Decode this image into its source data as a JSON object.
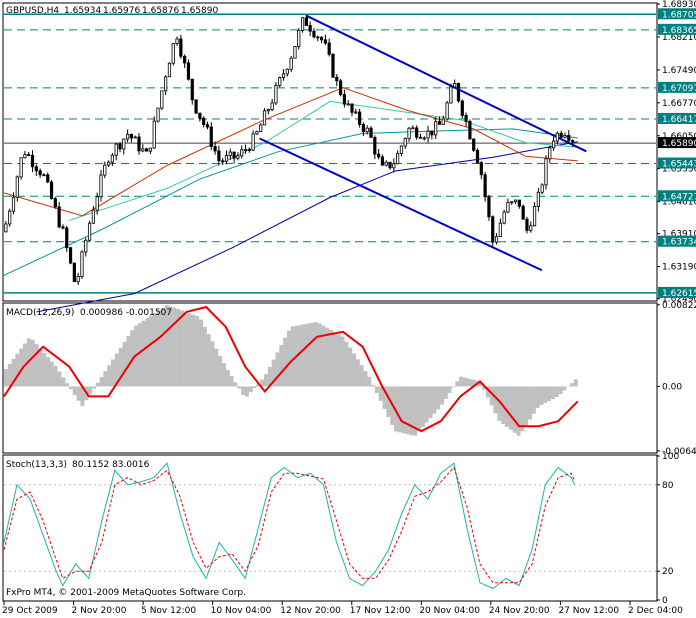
{
  "symbol_label": "GBPUSD,H4",
  "ohlc": {
    "open": "1.65934",
    "high": "1.65976",
    "low": "1.65876",
    "close": "1.65890"
  },
  "macd_label": "MACD(12,26,9)",
  "macd_values": "0.000986 -0.001507",
  "stoch_label": "Stoch(13,3,3)",
  "stoch_values": "80.1152 83.0016",
  "copyright": "FxPro MT4, © 2001-2009 MetaQuotes Software Corp.",
  "colors": {
    "frame": "#000000",
    "candle": "#000000",
    "h_lines": "#008080",
    "channel": "#0000cc",
    "ma_slow": "#000099",
    "ma_mid": "#009999",
    "ma_light": "#33cc99",
    "ma_red": "#cc3300",
    "macd_hist": "#c0c0c0",
    "macd_signal": "#ee0000",
    "stoch_main": "#20b2aa",
    "stoch_signal": "#ee0000",
    "label_bg": "#008080"
  },
  "chart_data": [
    {
      "type": "candlestick",
      "title": "GBPUSD,H4",
      "y_ticks": [
        "1.68930",
        "1.68210",
        "1.67490",
        "1.66770",
        "1.66050",
        "1.65330",
        "1.64610",
        "1.63910",
        "1.63190",
        "1.62490"
      ],
      "ylim": [
        1.6246,
        1.6893
      ],
      "x_ticks": [
        "29 Oct 2009",
        "2 Nov 20:00",
        "5 Nov 12:00",
        "10 Nov 04:00",
        "12 Nov 20:00",
        "17 Nov 12:00",
        "20 Nov 04:00",
        "24 Nov 20:00",
        "27 Nov 12:00",
        "2 Dec 04:00"
      ],
      "horizontal_levels": [
        "1.68705",
        "1.68365",
        "1.67097",
        "1.66417",
        "1.65890",
        "1.65443",
        "1.64727",
        "1.63734",
        "1.62615"
      ],
      "current_price": "1.65890",
      "channel_upper": [
        {
          "x": 0.463,
          "y": 1.6868
        },
        {
          "x": 0.893,
          "y": 1.6571
        }
      ],
      "channel_lower": [
        {
          "x": 0.392,
          "y": 1.6599
        },
        {
          "x": 0.825,
          "y": 1.6311
        }
      ],
      "close_path": [
        [
          0.0,
          1.6395
        ],
        [
          0.03,
          1.6575
        ],
        [
          0.06,
          1.652
        ],
        [
          0.09,
          1.6395
        ],
        [
          0.11,
          1.6275
        ],
        [
          0.135,
          1.644
        ],
        [
          0.16,
          1.656
        ],
        [
          0.19,
          1.661
        ],
        [
          0.22,
          1.656
        ],
        [
          0.25,
          1.6755
        ],
        [
          0.265,
          1.683
        ],
        [
          0.29,
          1.668
        ],
        [
          0.31,
          1.662
        ],
        [
          0.33,
          1.655
        ],
        [
          0.36,
          1.656
        ],
        [
          0.385,
          1.66
        ],
        [
          0.41,
          1.668
        ],
        [
          0.44,
          1.678
        ],
        [
          0.46,
          1.686
        ],
        [
          0.49,
          1.681
        ],
        [
          0.51,
          1.672
        ],
        [
          0.53,
          1.666
        ],
        [
          0.56,
          1.661
        ],
        [
          0.58,
          1.653
        ],
        [
          0.6,
          1.655
        ],
        [
          0.62,
          1.662
        ],
        [
          0.65,
          1.661
        ],
        [
          0.67,
          1.663
        ],
        [
          0.69,
          1.672
        ],
        [
          0.71,
          1.663
        ],
        [
          0.73,
          1.654
        ],
        [
          0.75,
          1.637
        ],
        [
          0.77,
          1.645
        ],
        [
          0.79,
          1.646
        ],
        [
          0.8,
          1.639
        ],
        [
          0.82,
          1.647
        ],
        [
          0.84,
          1.66
        ],
        [
          0.86,
          1.6618
        ],
        [
          0.875,
          1.6595
        ]
      ],
      "moving_averages": [
        {
          "role": "slow",
          "points": [
            [
              0.05,
              1.622
            ],
            [
              0.2,
              1.626
            ],
            [
              0.35,
              1.636
            ],
            [
              0.5,
              1.647
            ],
            [
              0.6,
              1.6528
            ],
            [
              0.75,
              1.6558
            ],
            [
              0.88,
              1.6592
            ]
          ]
        },
        {
          "role": "mid",
          "points": [
            [
              0.0,
              1.63
            ],
            [
              0.15,
              1.64
            ],
            [
              0.3,
              1.651
            ],
            [
              0.42,
              1.657
            ],
            [
              0.55,
              1.661
            ],
            [
              0.65,
              1.6615
            ],
            [
              0.78,
              1.662
            ],
            [
              0.88,
              1.66
            ]
          ]
        },
        {
          "role": "light",
          "points": [
            [
              0.1,
              1.642
            ],
            [
              0.25,
              1.649
            ],
            [
              0.4,
              1.659
            ],
            [
              0.5,
              1.668
            ],
            [
              0.6,
              1.666
            ],
            [
              0.7,
              1.664
            ],
            [
              0.8,
              1.659
            ],
            [
              0.88,
              1.658
            ]
          ]
        },
        {
          "role": "red",
          "points": [
            [
              0.0,
              1.648
            ],
            [
              0.12,
              1.643
            ],
            [
              0.25,
              1.654
            ],
            [
              0.4,
              1.664
            ],
            [
              0.52,
              1.671
            ],
            [
              0.62,
              1.666
            ],
            [
              0.72,
              1.662
            ],
            [
              0.8,
              1.656
            ],
            [
              0.88,
              1.655
            ]
          ]
        }
      ]
    },
    {
      "type": "bar",
      "title": "MACD(12,26,9)",
      "y_ticks": [
        "0.008220",
        "0.00",
        "-0.006495"
      ],
      "ylim": [
        -0.0066,
        0.0083
      ],
      "histogram_path": [
        [
          0.0,
          0.0015
        ],
        [
          0.04,
          0.005
        ],
        [
          0.08,
          0.002
        ],
        [
          0.12,
          -0.002
        ],
        [
          0.16,
          0.002
        ],
        [
          0.2,
          0.006
        ],
        [
          0.25,
          0.0082
        ],
        [
          0.3,
          0.007
        ],
        [
          0.34,
          0.002
        ],
        [
          0.37,
          -0.0012
        ],
        [
          0.4,
          0.001
        ],
        [
          0.44,
          0.006
        ],
        [
          0.48,
          0.0065
        ],
        [
          0.52,
          0.005
        ],
        [
          0.56,
          0.001
        ],
        [
          0.6,
          -0.0045
        ],
        [
          0.63,
          -0.005
        ],
        [
          0.67,
          -0.002
        ],
        [
          0.7,
          0.001
        ],
        [
          0.73,
          0.0005
        ],
        [
          0.76,
          -0.0035
        ],
        [
          0.79,
          -0.005
        ],
        [
          0.82,
          -0.002
        ],
        [
          0.85,
          -0.001
        ],
        [
          0.88,
          0.0009
        ]
      ],
      "signal_path": [
        [
          0.0,
          -0.001
        ],
        [
          0.03,
          0.002
        ],
        [
          0.06,
          0.004
        ],
        [
          0.1,
          0.002
        ],
        [
          0.13,
          -0.001
        ],
        [
          0.16,
          -0.001
        ],
        [
          0.2,
          0.003
        ],
        [
          0.24,
          0.005
        ],
        [
          0.28,
          0.0075
        ],
        [
          0.31,
          0.008
        ],
        [
          0.34,
          0.006
        ],
        [
          0.37,
          0.002
        ],
        [
          0.4,
          -0.0005
        ],
        [
          0.44,
          0.0025
        ],
        [
          0.48,
          0.005
        ],
        [
          0.52,
          0.0055
        ],
        [
          0.55,
          0.004
        ],
        [
          0.58,
          0.0
        ],
        [
          0.61,
          -0.0035
        ],
        [
          0.64,
          -0.0045
        ],
        [
          0.67,
          -0.0035
        ],
        [
          0.7,
          -0.001
        ],
        [
          0.73,
          0.0005
        ],
        [
          0.76,
          -0.0015
        ],
        [
          0.79,
          -0.004
        ],
        [
          0.82,
          -0.004
        ],
        [
          0.85,
          -0.0035
        ],
        [
          0.88,
          -0.0015
        ]
      ]
    },
    {
      "type": "line",
      "title": "Stoch(13,3,3)",
      "y_ticks": [
        "100",
        "80",
        "20",
        "0"
      ],
      "ylim": [
        0,
        100
      ],
      "main_path": [
        [
          0.0,
          40
        ],
        [
          0.02,
          80
        ],
        [
          0.04,
          70
        ],
        [
          0.06,
          45
        ],
        [
          0.08,
          20
        ],
        [
          0.09,
          10
        ],
        [
          0.11,
          25
        ],
        [
          0.13,
          15
        ],
        [
          0.15,
          55
        ],
        [
          0.17,
          90
        ],
        [
          0.19,
          80
        ],
        [
          0.21,
          82
        ],
        [
          0.23,
          85
        ],
        [
          0.25,
          95
        ],
        [
          0.27,
          60
        ],
        [
          0.29,
          30
        ],
        [
          0.31,
          15
        ],
        [
          0.33,
          40
        ],
        [
          0.35,
          28
        ],
        [
          0.37,
          15
        ],
        [
          0.39,
          50
        ],
        [
          0.41,
          85
        ],
        [
          0.43,
          92
        ],
        [
          0.45,
          85
        ],
        [
          0.47,
          88
        ],
        [
          0.49,
          80
        ],
        [
          0.51,
          40
        ],
        [
          0.53,
          15
        ],
        [
          0.55,
          10
        ],
        [
          0.57,
          20
        ],
        [
          0.59,
          35
        ],
        [
          0.61,
          60
        ],
        [
          0.63,
          80
        ],
        [
          0.65,
          70
        ],
        [
          0.67,
          88
        ],
        [
          0.69,
          95
        ],
        [
          0.71,
          50
        ],
        [
          0.73,
          12
        ],
        [
          0.75,
          8
        ],
        [
          0.77,
          15
        ],
        [
          0.79,
          10
        ],
        [
          0.81,
          35
        ],
        [
          0.83,
          80
        ],
        [
          0.85,
          92
        ],
        [
          0.87,
          85
        ],
        [
          0.875,
          80
        ]
      ],
      "signal_path": [
        [
          0.0,
          35
        ],
        [
          0.02,
          70
        ],
        [
          0.04,
          75
        ],
        [
          0.06,
          55
        ],
        [
          0.08,
          28
        ],
        [
          0.09,
          15
        ],
        [
          0.11,
          20
        ],
        [
          0.13,
          20
        ],
        [
          0.15,
          40
        ],
        [
          0.17,
          80
        ],
        [
          0.19,
          85
        ],
        [
          0.21,
          80
        ],
        [
          0.23,
          83
        ],
        [
          0.25,
          90
        ],
        [
          0.27,
          72
        ],
        [
          0.29,
          40
        ],
        [
          0.31,
          22
        ],
        [
          0.33,
          30
        ],
        [
          0.35,
          32
        ],
        [
          0.37,
          20
        ],
        [
          0.39,
          38
        ],
        [
          0.41,
          75
        ],
        [
          0.43,
          88
        ],
        [
          0.45,
          88
        ],
        [
          0.47,
          86
        ],
        [
          0.49,
          84
        ],
        [
          0.51,
          55
        ],
        [
          0.53,
          25
        ],
        [
          0.55,
          15
        ],
        [
          0.57,
          15
        ],
        [
          0.59,
          28
        ],
        [
          0.61,
          48
        ],
        [
          0.63,
          72
        ],
        [
          0.65,
          75
        ],
        [
          0.67,
          82
        ],
        [
          0.69,
          92
        ],
        [
          0.71,
          65
        ],
        [
          0.73,
          25
        ],
        [
          0.75,
          12
        ],
        [
          0.77,
          12
        ],
        [
          0.79,
          12
        ],
        [
          0.81,
          25
        ],
        [
          0.83,
          65
        ],
        [
          0.85,
          85
        ],
        [
          0.87,
          88
        ],
        [
          0.875,
          83
        ]
      ]
    }
  ]
}
